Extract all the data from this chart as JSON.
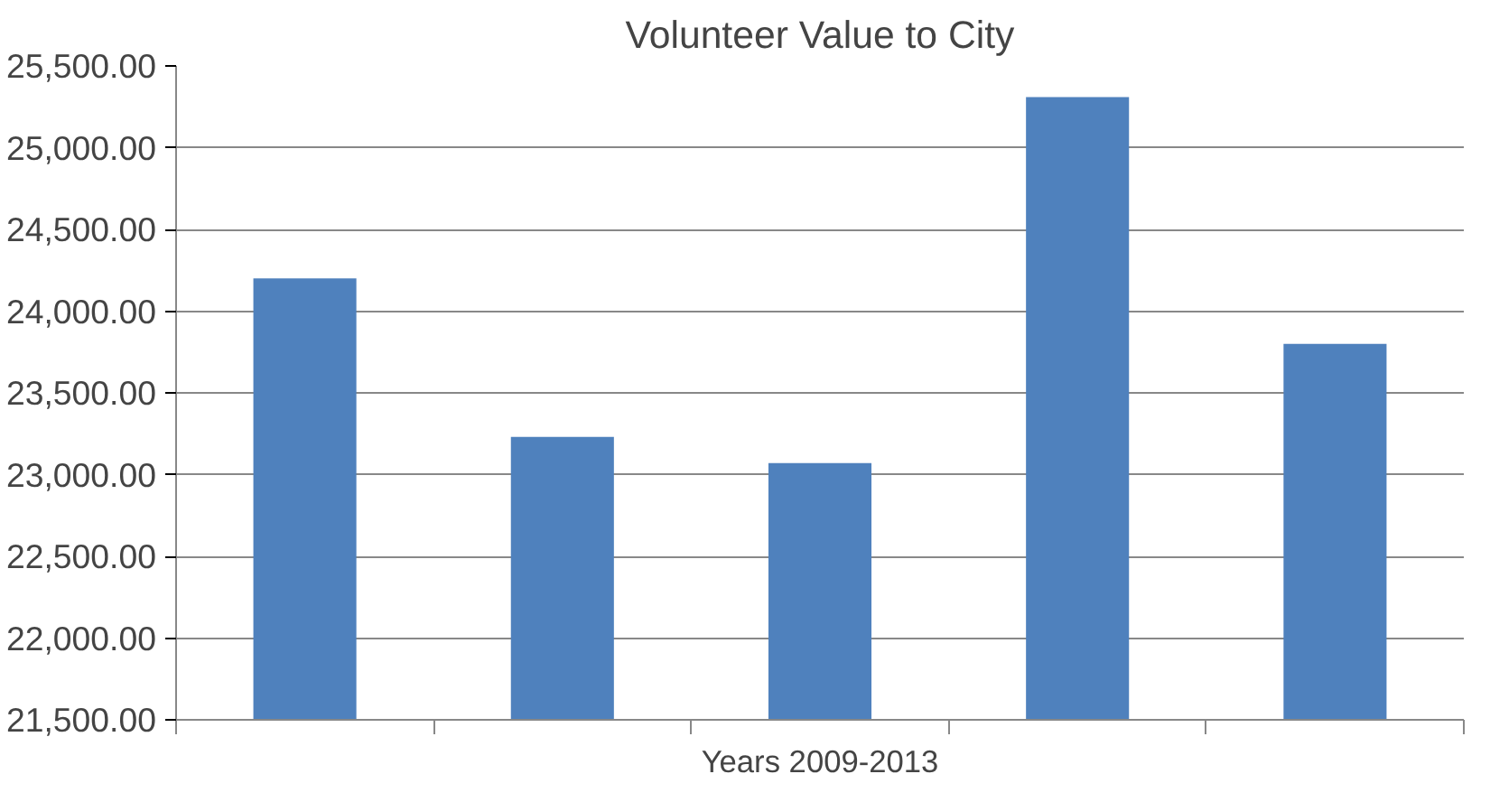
{
  "chart_data": {
    "type": "bar",
    "title": "Volunteer Value to City",
    "xlabel": "Years 2009-2013",
    "categories": [
      null,
      null,
      null,
      null,
      null
    ],
    "values": [
      24200,
      23230,
      23070,
      25310,
      23800
    ],
    "color": "#4f81bd",
    "ylim": [
      21500,
      25500
    ],
    "yticks": [
      {
        "value": 21500,
        "label": "21,500.00"
      },
      {
        "value": 22000,
        "label": "22,000.00"
      },
      {
        "value": 22500,
        "label": "22,500.00"
      },
      {
        "value": 23000,
        "label": "23,000.00"
      },
      {
        "value": 23500,
        "label": "23,500.00"
      },
      {
        "value": 24000,
        "label": "24,000.00"
      },
      {
        "value": 24500,
        "label": "24,500.00"
      },
      {
        "value": 25000,
        "label": "25,000.00"
      },
      {
        "value": 25500,
        "label": "25,500.00"
      }
    ],
    "grid": "y"
  }
}
